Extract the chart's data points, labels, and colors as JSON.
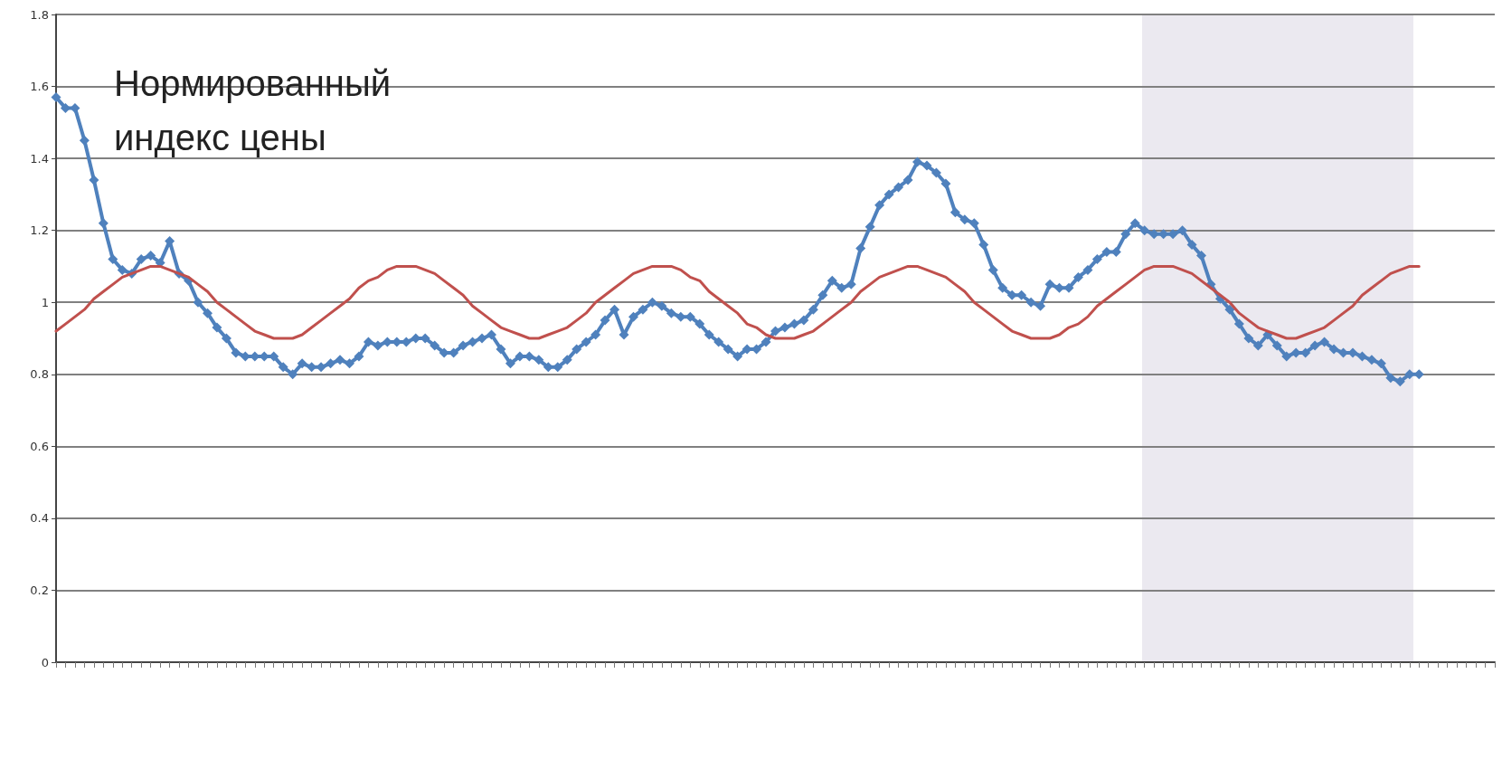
{
  "chart_data": {
    "type": "line",
    "annotations": [
      "Нормированный индекс цены"
    ],
    "categories": [
      null,
      null,
      null,
      null,
      null,
      null,
      null,
      null,
      null,
      null,
      null,
      null,
      null,
      null,
      null,
      null,
      null,
      null,
      null,
      null,
      null,
      null,
      null,
      null,
      null,
      null,
      null,
      null,
      null,
      null,
      null,
      null,
      null,
      null,
      null,
      null,
      null,
      null,
      null,
      null,
      null,
      null,
      null,
      null,
      null,
      null,
      null,
      null,
      null,
      null,
      null,
      null,
      null,
      null,
      null,
      null,
      null,
      null,
      null,
      null,
      null,
      null,
      null,
      null,
      null,
      null,
      null,
      null,
      null,
      null,
      null,
      null,
      null,
      null,
      null,
      null,
      null,
      null,
      null,
      null,
      null,
      null,
      null,
      null,
      null,
      null,
      null,
      null,
      null,
      null,
      null,
      null,
      null,
      null,
      null,
      null,
      null,
      null,
      null,
      null,
      null,
      null,
      null,
      null,
      null,
      null,
      null,
      null,
      null,
      null,
      null,
      null,
      null,
      null,
      null,
      null,
      null,
      null,
      null,
      null,
      null,
      null,
      null,
      null,
      null,
      null,
      null,
      null,
      null,
      null,
      null,
      null,
      null,
      null,
      null,
      null,
      null,
      null,
      null,
      null,
      null,
      null,
      null,
      null,
      null,
      null,
      null,
      null,
      null,
      null,
      null,
      null,
      null
    ],
    "ylim": [
      0,
      1.8
    ],
    "yticks": [
      0,
      0.2,
      0.4,
      0.6,
      0.8,
      1,
      1.2,
      1.4,
      1.6,
      1.8
    ],
    "grid": "y",
    "tick_labels": "y",
    "marker": "diamond",
    "line_style": "solid",
    "series": [
      {
        "color": "#4f81bd",
        "values": [
          1.57,
          1.54,
          1.54,
          1.45,
          1.34,
          1.22,
          1.12,
          1.09,
          1.08,
          1.12,
          1.13,
          1.11,
          1.17,
          1.08,
          1.06,
          1,
          0.97,
          0.93,
          0.9,
          0.86,
          0.85,
          0.85,
          0.85,
          0.85,
          0.82,
          0.8,
          0.83,
          0.82,
          0.82,
          0.83,
          0.84,
          0.83,
          0.85,
          0.89,
          0.88,
          0.89,
          0.89,
          0.89,
          0.9,
          0.9,
          0.88,
          0.86,
          0.86,
          0.88,
          0.89,
          0.9,
          0.91,
          0.87,
          0.83,
          0.85,
          0.85,
          0.84,
          0.82,
          0.82,
          0.84,
          0.87,
          0.89,
          0.91,
          0.95,
          0.98,
          0.91,
          0.96,
          0.98,
          1,
          0.99,
          0.97,
          0.96,
          0.96,
          0.94,
          0.91,
          0.89,
          0.87,
          0.85,
          0.87,
          0.87,
          0.89,
          0.92,
          0.93,
          0.94,
          0.95,
          0.98,
          1.02,
          1.06,
          1.04,
          1.05,
          1.15,
          1.21,
          1.27,
          1.3,
          1.32,
          1.34,
          1.39,
          1.38,
          1.36,
          1.33,
          1.25,
          1.23,
          1.22,
          1.16,
          1.09,
          1.04,
          1.02,
          1.02,
          1,
          0.99,
          1.05,
          1.04,
          1.04,
          1.07,
          1.09,
          1.12,
          1.14,
          1.14,
          1.19,
          1.22,
          1.2,
          1.19,
          1.19,
          1.19,
          1.2,
          1.16,
          1.13,
          1.05,
          1.01,
          0.98,
          0.94,
          0.9,
          0.88,
          0.91,
          0.88,
          0.85,
          0.86,
          0.86,
          0.88,
          0.89,
          0.87,
          0.86,
          0.86,
          0.85,
          0.84,
          0.83,
          0.79,
          0.78,
          0.8,
          0.8,
          null,
          null,
          null,
          null,
          null,
          null,
          null,
          null
        ]
      },
      {
        "color": "#c0504d",
        "marker": "none",
        "values": [
          0.92,
          0.94,
          0.96,
          0.98,
          1.01,
          1.03,
          1.05,
          1.07,
          1.08,
          1.09,
          1.1,
          1.1,
          1.09,
          1.08,
          1.07,
          1.05,
          1.03,
          1,
          0.98,
          0.96,
          0.94,
          0.92,
          0.91,
          0.9,
          0.9,
          0.9,
          0.91,
          0.93,
          0.95,
          0.97,
          0.99,
          1.01,
          1.04,
          1.06,
          1.07,
          1.09,
          1.1,
          1.1,
          1.1,
          1.09,
          1.08,
          1.06,
          1.04,
          1.02,
          0.99,
          0.97,
          0.95,
          0.93,
          0.92,
          0.91,
          0.9,
          0.9,
          0.91,
          0.92,
          0.93,
          0.95,
          0.97,
          1,
          1.02,
          1.04,
          1.06,
          1.08,
          1.09,
          1.1,
          1.1,
          1.1,
          1.09,
          1.07,
          1.06,
          1.03,
          1.01,
          0.99,
          0.97,
          0.94,
          0.93,
          0.91,
          0.9,
          0.9,
          0.9,
          0.91,
          0.92,
          0.94,
          0.96,
          0.98,
          1,
          1.03,
          1.05,
          1.07,
          1.08,
          1.09,
          1.1,
          1.1,
          1.09,
          1.08,
          1.07,
          1.05,
          1.03,
          1,
          0.98,
          0.96,
          0.94,
          0.92,
          0.91,
          0.9,
          0.9,
          0.9,
          0.91,
          0.93,
          0.94,
          0.96,
          0.99,
          1.01,
          1.03,
          1.05,
          1.07,
          1.09,
          1.1,
          1.1,
          1.1,
          1.09,
          1.08,
          1.06,
          1.04,
          1.02,
          1,
          0.97,
          0.95,
          0.93,
          0.92,
          0.91,
          0.9,
          0.9,
          0.91,
          0.92,
          0.93,
          0.95,
          0.97,
          0.99,
          1.02,
          1.04,
          1.06,
          1.08,
          1.09,
          1.1,
          1.1,
          null,
          null,
          null,
          null,
          null,
          null,
          null,
          null
        ]
      }
    ]
  }
}
